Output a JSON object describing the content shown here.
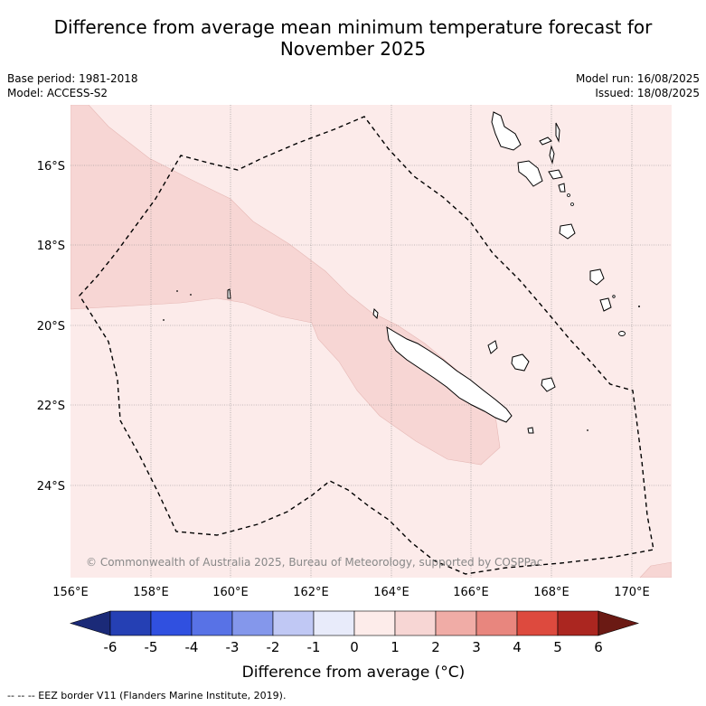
{
  "title_line1": "Difference from average mean minimum temperature forecast for",
  "title_line2": "November 2025",
  "base_period": "Base period: 1981-2018",
  "model": "Model: ACCESS-S2",
  "model_run": "Model run: 16/08/2025",
  "issued": "Issued: 18/08/2025",
  "copyright": "© Commonwealth of Australia 2025, Bureau of Meteorology, supported by COSPPac",
  "eez_note": "-- -- -- EEZ border V11 (Flanders Marine Institute, 2019).",
  "lat_labels": [
    "16°S",
    "18°S",
    "20°S",
    "22°S",
    "24°S"
  ],
  "lon_labels": [
    "156°E",
    "158°E",
    "160°E",
    "162°E",
    "164°E",
    "166°E",
    "168°E",
    "170°E"
  ],
  "colorbar": {
    "title": "Difference from average (°C)",
    "ticks": [
      "-6",
      "-5",
      "-4",
      "-3",
      "-2",
      "-1",
      "0",
      "1",
      "2",
      "3",
      "4",
      "5",
      "6"
    ],
    "colors": [
      "#1b2a78",
      "#2540b4",
      "#3050e0",
      "#5872e6",
      "#8497eb",
      "#c0c8f4",
      "#e8ebfa",
      "#fdecea",
      "#f7d6d4",
      "#f0aca6",
      "#e8867e",
      "#dd4a3e",
      "#ab2620",
      "#6b1a14"
    ]
  },
  "map": {
    "background_color": "#fcebea",
    "band_color": "#f7d6d4",
    "grid_color": "#888888"
  }
}
